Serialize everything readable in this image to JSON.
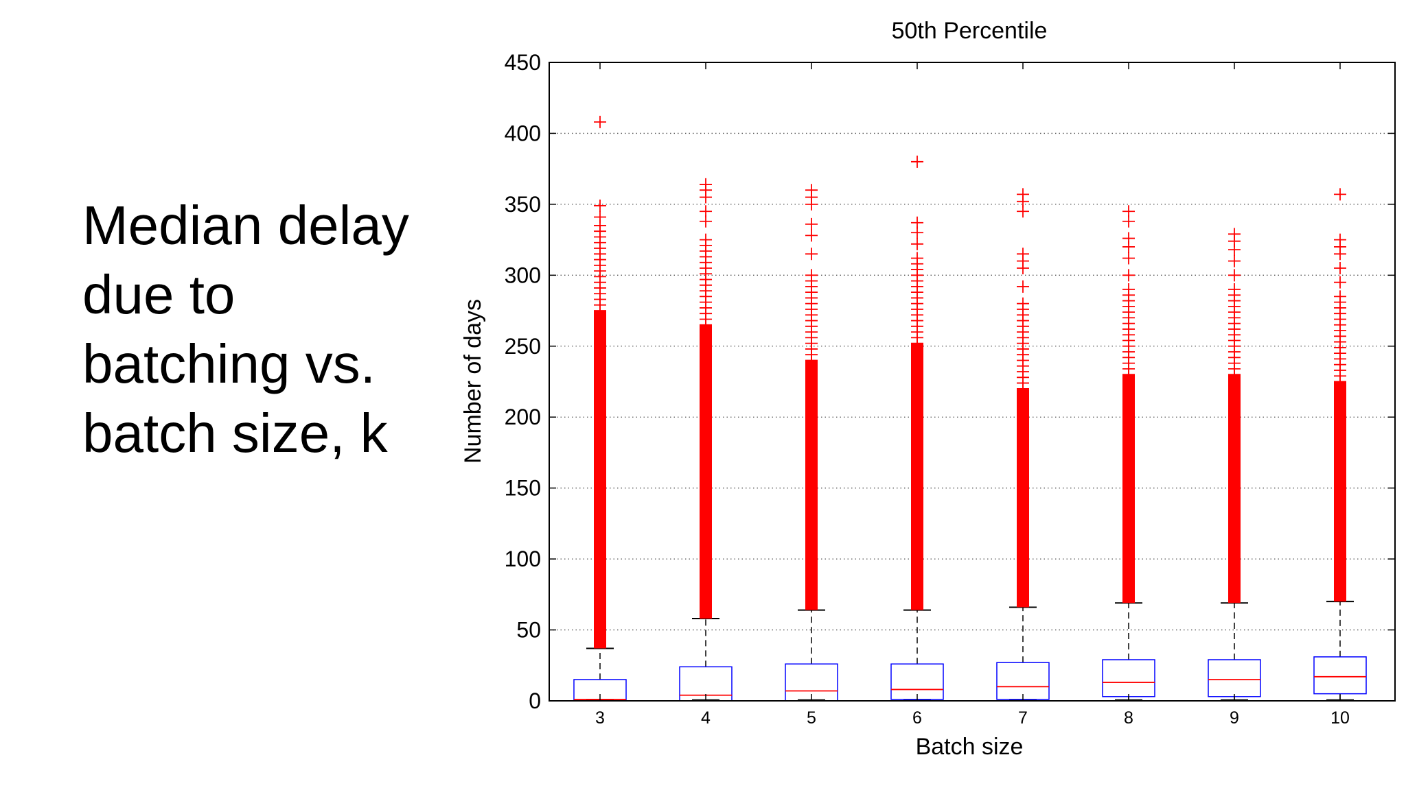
{
  "slide": {
    "text_lines": [
      "Median delay",
      "due to",
      "batching vs.",
      "batch size, k"
    ]
  },
  "chart_data": {
    "type": "box",
    "title": "50th Percentile",
    "xlabel": "Batch size",
    "ylabel": "Number of days",
    "ylim": [
      0,
      450
    ],
    "yticks": [
      0,
      50,
      100,
      150,
      200,
      250,
      300,
      350,
      400,
      450
    ],
    "grid": "horizontal-dotted",
    "categories": [
      "3",
      "4",
      "5",
      "6",
      "7",
      "8",
      "9",
      "10"
    ],
    "boxes": [
      {
        "category": "3",
        "q1": 0,
        "median": 1,
        "q3": 15,
        "whisker_low": 0,
        "whisker_high": 37,
        "outlier_dense_range": [
          37,
          335
        ],
        "outliers_sparse": [
          341,
          349,
          408
        ]
      },
      {
        "category": "4",
        "q1": 0,
        "median": 4,
        "q3": 24,
        "whisker_low": 0,
        "whisker_high": 58,
        "outlier_dense_range": [
          58,
          325
        ],
        "outliers_sparse": [
          338,
          345,
          355,
          360,
          364
        ]
      },
      {
        "category": "5",
        "q1": 0,
        "median": 7,
        "q3": 26,
        "whisker_low": 0,
        "whisker_high": 64,
        "outlier_dense_range": [
          64,
          300
        ],
        "outliers_sparse": [
          315,
          328,
          336,
          350,
          355,
          360
        ]
      },
      {
        "category": "6",
        "q1": 1,
        "median": 8,
        "q3": 26,
        "whisker_low": 0,
        "whisker_high": 64,
        "outlier_dense_range": [
          64,
          312
        ],
        "outliers_sparse": [
          322,
          330,
          337,
          380
        ]
      },
      {
        "category": "7",
        "q1": 1,
        "median": 10,
        "q3": 27,
        "whisker_low": 0,
        "whisker_high": 66,
        "outlier_dense_range": [
          66,
          280
        ],
        "outliers_sparse": [
          292,
          305,
          310,
          315,
          345,
          352,
          357
        ]
      },
      {
        "category": "8",
        "q1": 3,
        "median": 13,
        "q3": 29,
        "whisker_low": 0,
        "whisker_high": 69,
        "outlier_dense_range": [
          69,
          290
        ],
        "outliers_sparse": [
          300,
          312,
          320,
          326,
          338,
          345
        ]
      },
      {
        "category": "9",
        "q1": 3,
        "median": 15,
        "q3": 29,
        "whisker_low": 0,
        "whisker_high": 69,
        "outlier_dense_range": [
          69,
          290
        ],
        "outliers_sparse": [
          300,
          310,
          318,
          324,
          329
        ]
      },
      {
        "category": "10",
        "q1": 5,
        "median": 17,
        "q3": 31,
        "whisker_low": 0,
        "whisker_high": 70,
        "outlier_dense_range": [
          70,
          285
        ],
        "outliers_sparse": [
          295,
          305,
          315,
          320,
          325,
          357
        ]
      }
    ],
    "colors": {
      "box": "#0000ff",
      "median": "#ff0000",
      "outlier": "#ff0000",
      "whisker": "#000000",
      "grid": "#555555"
    }
  }
}
